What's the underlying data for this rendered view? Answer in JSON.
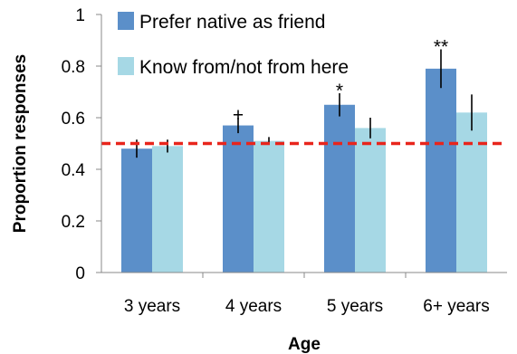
{
  "chart_data": {
    "type": "bar",
    "xlabel": "Age",
    "ylabel": "Proportion responses",
    "ylim": [
      0,
      1
    ],
    "yticks": [
      "0",
      "0.2",
      "0.4",
      "0.6",
      "0.8",
      "1"
    ],
    "ytick_values": [
      0,
      0.2,
      0.4,
      0.6,
      0.8,
      1
    ],
    "categories": [
      "3 years",
      "4 years",
      "5 years",
      "6+ years"
    ],
    "series": [
      {
        "name": "Prefer native as friend",
        "color": "#5b8fc9",
        "values": [
          0.48,
          0.57,
          0.65,
          0.79
        ],
        "error": [
          0.035,
          0.03,
          0.045,
          0.075
        ]
      },
      {
        "name": "Know from/not from here",
        "color": "#a6d8e5",
        "values": [
          0.49,
          0.51,
          0.56,
          0.62
        ],
        "error": [
          0.025,
          0.015,
          0.04,
          0.07
        ]
      }
    ],
    "significance": [
      "",
      "+",
      "*",
      "**"
    ],
    "reference_line": {
      "value": 0.5,
      "color": "#e8251c",
      "style": "dashed"
    },
    "legend_position": "top-left"
  }
}
